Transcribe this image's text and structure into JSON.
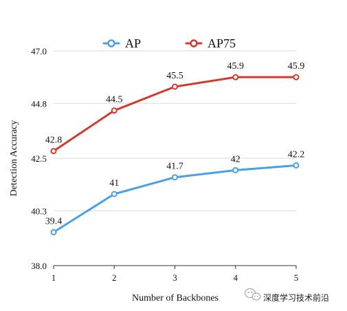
{
  "chart_data": {
    "type": "line",
    "title": "",
    "xlabel": "Number of Backbones",
    "ylabel": "Detection  Accuracy",
    "x": [
      1,
      2,
      3,
      4,
      5
    ],
    "xlim": [
      1,
      5
    ],
    "ylim": [
      38.0,
      47.0
    ],
    "yticks": [
      "38.0",
      "40.3",
      "42.5",
      "44.8",
      "47.0"
    ],
    "xticks": [
      "1",
      "2",
      "3",
      "4",
      "5"
    ],
    "grid": "horizontal",
    "legend_position": "top",
    "series": [
      {
        "name": "AP",
        "color": "#4a9fe6",
        "values": [
          39.4,
          41.0,
          41.7,
          42.0,
          42.2
        ],
        "labels": [
          "39.4",
          "41",
          "41.7",
          "42",
          "42.2"
        ]
      },
      {
        "name": "AP75",
        "color": "#d23a2b",
        "values": [
          42.8,
          44.5,
          45.5,
          45.9,
          45.9
        ],
        "labels": [
          "42.8",
          "44.5",
          "45.5",
          "45.9",
          "45.9"
        ]
      }
    ]
  },
  "watermark": {
    "text": "深度学习技术前沿",
    "icon": "wechat-icon"
  }
}
